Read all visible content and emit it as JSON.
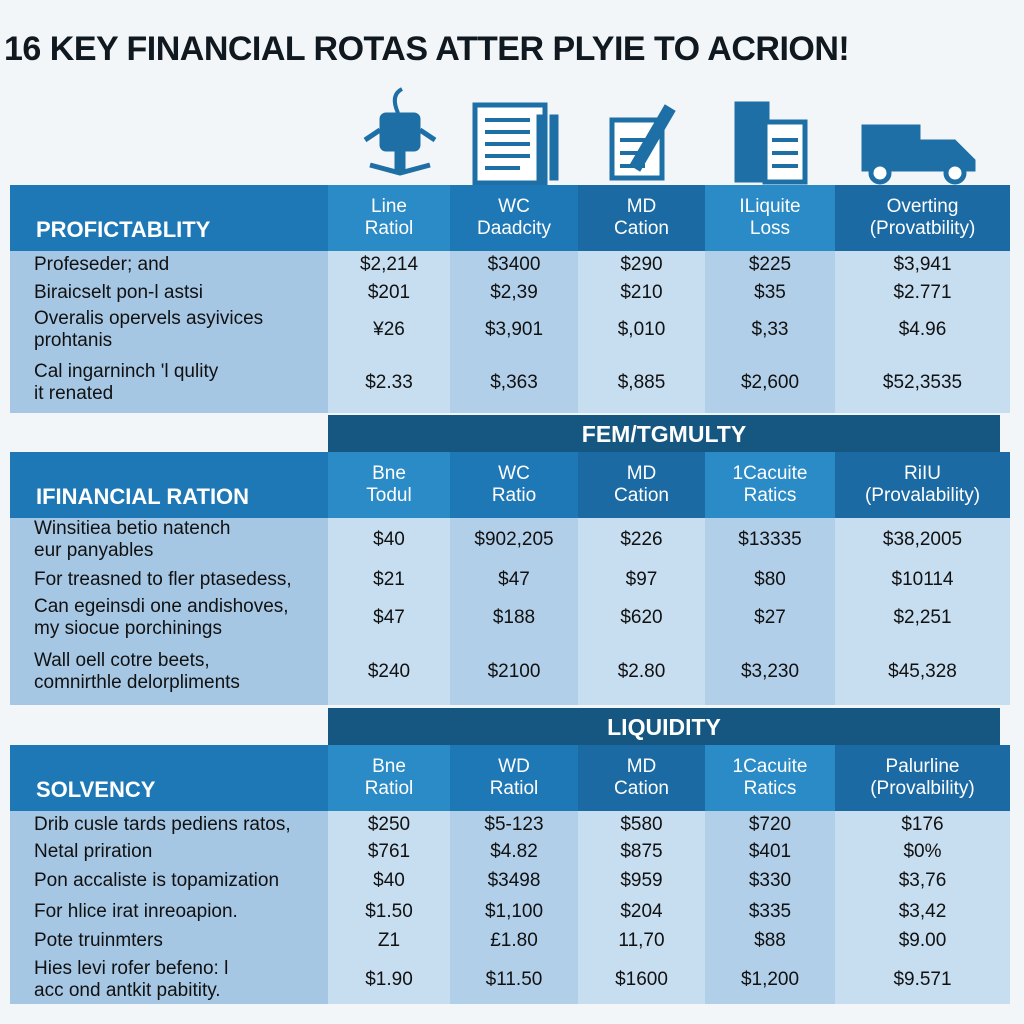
{
  "title": "16 KEY FINANCIAL ROTAS ATTER PLYIE TO ACRION!",
  "sections": [
    {
      "banner": null,
      "label": "PROFICTABLITY",
      "columns": [
        "Line\nRatiol",
        "WC\nDaadcity",
        "MD\nCation",
        "ILiquite\nLoss",
        "Overting\n(Provatbility)"
      ],
      "rows": [
        {
          "label": "Profeseder; and",
          "cells": [
            "$2,214",
            "$3400",
            "$290",
            "$225",
            "$3,941"
          ]
        },
        {
          "label": "Biraicselt pon-l astsi",
          "cells": [
            "$201",
            "$2,39",
            "$210",
            "$35",
            "$2.771"
          ]
        },
        {
          "label": "Overalis opervels asyivices\nprohtanis",
          "cells": [
            "¥26",
            "$3,901",
            "$,010",
            "$,33",
            "$4.96"
          ]
        },
        {
          "label": "Cal ingarninch 'l qulity\nit renated",
          "cells": [
            "$2.33",
            "$,363",
            "$,885",
            "$2,600",
            "$52,3535"
          ]
        }
      ]
    },
    {
      "banner": "FEM/TGMULTY",
      "label": "IFINANCIAL RATION",
      "columns": [
        "Bne\nTodul",
        "WC\nRatio",
        "MD\nCation",
        "1Cacuite\nRatics",
        "RiIU\n(Provalability)"
      ],
      "rows": [
        {
          "label": "Winsitiea betio natench\neur panyables",
          "cells": [
            "$40",
            "$902,205",
            "$226",
            "$13335",
            "$38,2005"
          ]
        },
        {
          "label": "For treasned to fler ptasedess,",
          "cells": [
            "$21",
            "$47",
            "$97",
            "$80",
            "$10114"
          ]
        },
        {
          "label": "Can egeinsdi one andishoves,\nmy siocue porchinings",
          "cells": [
            "$47",
            "$188",
            "$620",
            "$27",
            "$2,251"
          ]
        },
        {
          "label": "Wall oell cotre beets,\ncomnirthle delorpliments",
          "cells": [
            "$240",
            "$2100",
            "$2.80",
            "$3,230",
            "$45,328"
          ]
        }
      ]
    },
    {
      "banner": "LIQUIDITY",
      "label": "SOLVENCY",
      "columns": [
        "Bne\nRatiol",
        "WD\nRatiol",
        "MD\nCation",
        "1Cacuite\nRatics",
        "Palurline\n(Provalbility)"
      ],
      "rows": [
        {
          "label": "Drib cusle tards pediens ratos,",
          "cells": [
            "$250",
            "$5-123",
            "$580",
            "$720",
            "$176"
          ]
        },
        {
          "label": "Netal priration",
          "cells": [
            "$761",
            "$4.82",
            "$875",
            "$401",
            "$0%"
          ]
        },
        {
          "label": "Pon accaliste is topamization",
          "cells": [
            "$40",
            "$3498",
            "$959",
            "$330",
            "$3,76"
          ]
        },
        {
          "label": "For hlice irat inreoapion.",
          "cells": [
            "$1.50",
            "$1,100",
            "$204",
            "$335",
            "$3,42"
          ]
        },
        {
          "label": "Pote truinmters",
          "cells": [
            "Z1",
            "£1.80",
            "11,70",
            "$88",
            "$9.00"
          ]
        },
        {
          "label": "Hies levi rofer befeno: l\nacc ond antkit pabitity.",
          "cells": [
            "$1.90",
            "$11.50",
            "$1600",
            "$1,200",
            "$9.571"
          ]
        }
      ]
    }
  ]
}
